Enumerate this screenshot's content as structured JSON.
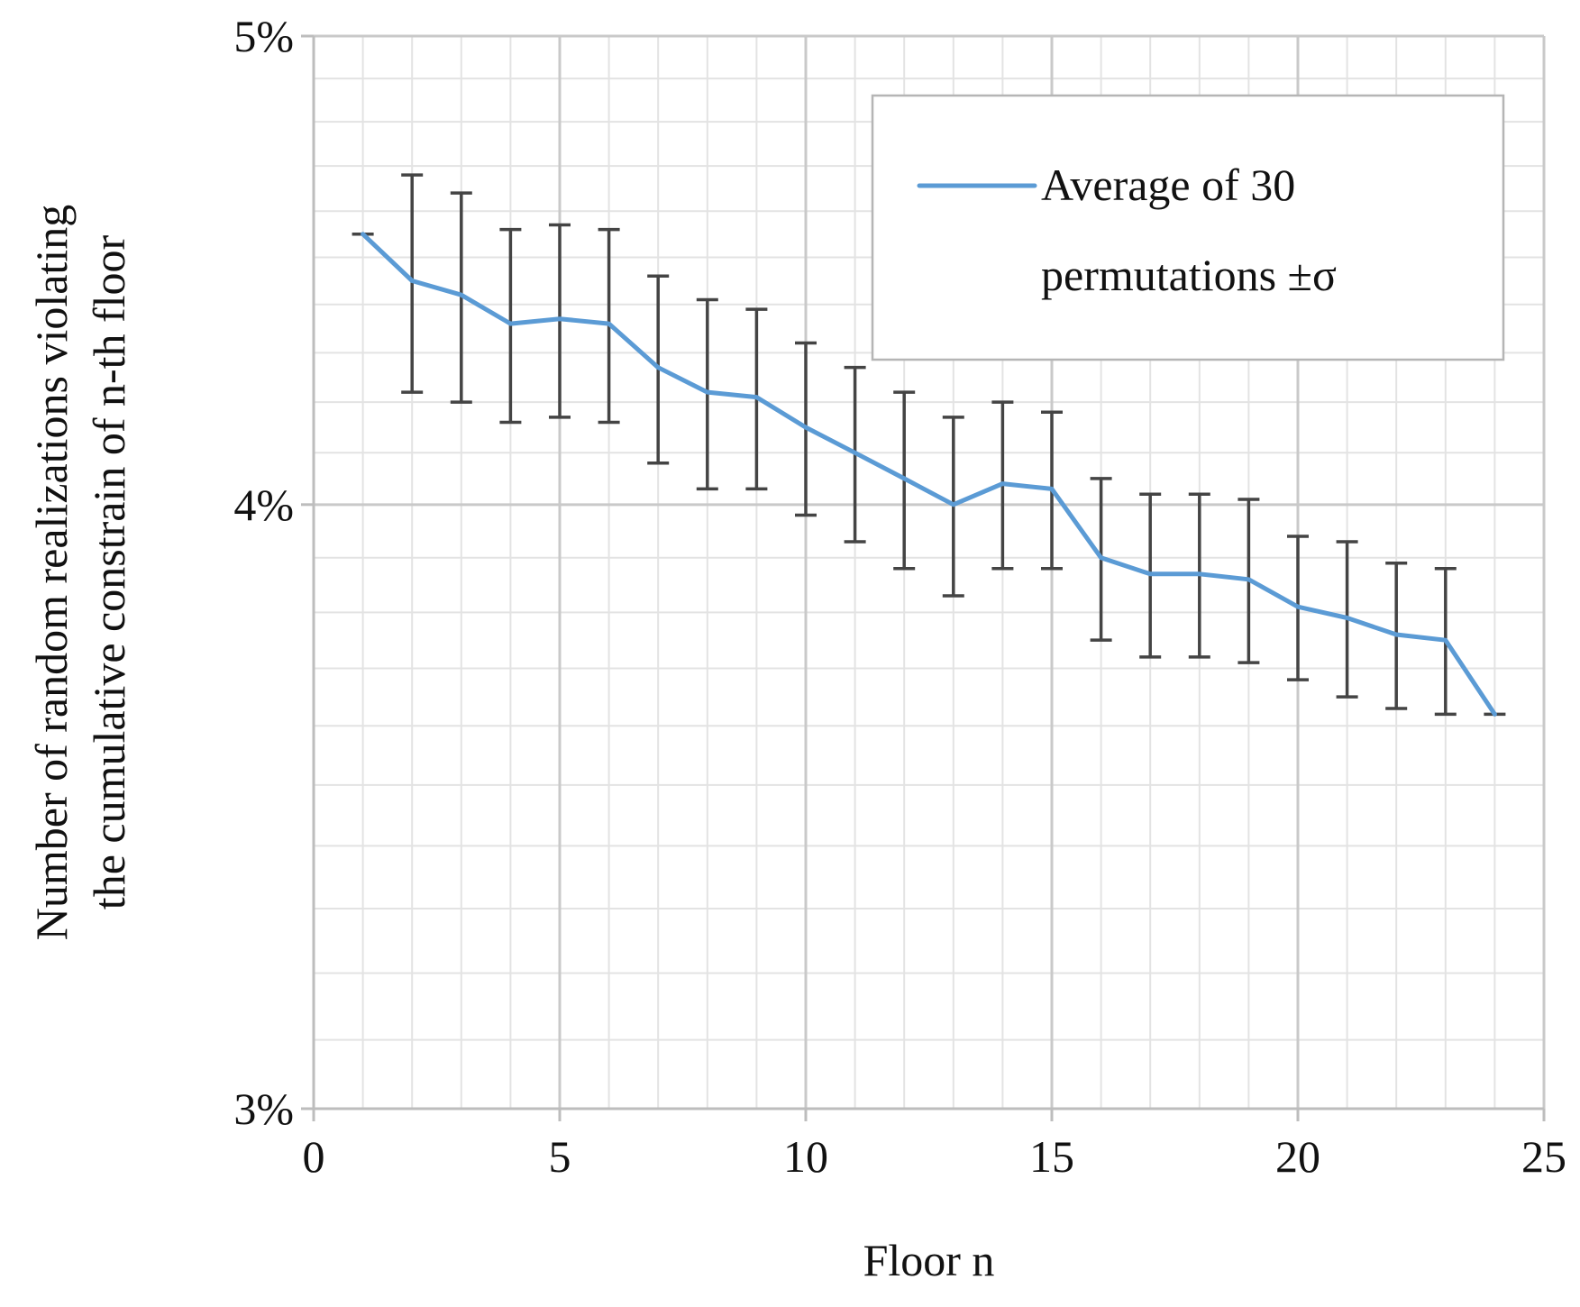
{
  "chart_data": {
    "type": "line",
    "title": "",
    "xlabel": "Floor n",
    "ylabel": [
      "Number of random realizations violating",
      "the cumulative constrain of n-th floor"
    ],
    "xlim": [
      0,
      25
    ],
    "ylim": [
      3,
      5
    ],
    "y_scale": "log",
    "x_ticks": [
      0,
      5,
      10,
      15,
      20,
      25
    ],
    "x_tick_labels": [
      "0",
      "5",
      "10",
      "15",
      "20",
      "25"
    ],
    "y_ticks": [
      3,
      4,
      5
    ],
    "y_tick_labels": [
      "3%",
      "4%",
      "5%"
    ],
    "grid": true,
    "legend_position": "top-right",
    "series": [
      {
        "name": [
          "Average of 30",
          "permutations ±σ"
        ],
        "color": "#5b9bd5",
        "x": [
          1,
          2,
          3,
          4,
          5,
          6,
          7,
          8,
          9,
          10,
          11,
          12,
          13,
          14,
          15,
          16,
          17,
          18,
          19,
          20,
          21,
          22,
          23,
          24
        ],
        "y": [
          4.55,
          4.45,
          4.42,
          4.36,
          4.37,
          4.36,
          4.27,
          4.22,
          4.21,
          4.15,
          4.1,
          4.05,
          4.0,
          4.04,
          4.03,
          3.9,
          3.87,
          3.87,
          3.86,
          3.81,
          3.79,
          3.76,
          3.75,
          3.62
        ],
        "error": [
          0,
          0.23,
          0.22,
          0.2,
          0.2,
          0.2,
          0.19,
          0.19,
          0.18,
          0.17,
          0.17,
          0.17,
          0.17,
          0.16,
          0.15,
          0.15,
          0.15,
          0.15,
          0.15,
          0.13,
          0.14,
          0.13,
          0.13,
          0
        ]
      }
    ]
  }
}
